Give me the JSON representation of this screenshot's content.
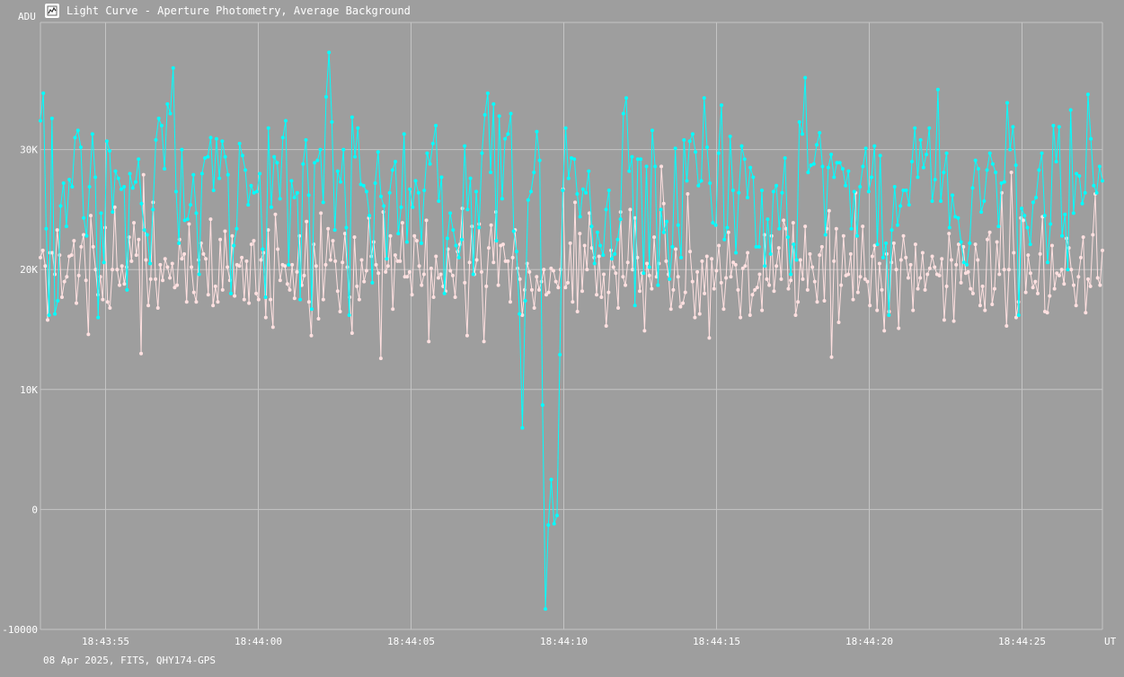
{
  "window": {
    "title": "Light Curve - Aperture Photometry, Average Background",
    "icon": "chart-app-icon"
  },
  "footer": {
    "info": "08 Apr 2025, FITS, QHY174-GPS"
  },
  "colors": {
    "background": "#9e9e9e",
    "grid": "#c4c4c4",
    "series_target": "#00ffff",
    "series_comparison": "#ffe0e0"
  },
  "chart_data": {
    "type": "line",
    "title": "",
    "ylabel": "ADU",
    "xlabel": "UT",
    "ylim": [
      -10000,
      41000
    ],
    "y_ticks": [
      -10000,
      0,
      10000,
      20000,
      30000
    ],
    "y_tick_labels": [
      "-10000",
      "0",
      "10K",
      "20K",
      "30K"
    ],
    "x_range_seconds": [
      18.43528,
      18.44875
    ],
    "x_ticks": [
      "18:43:55",
      "18:44:00",
      "18:44:05",
      "18:44:10",
      "18:44:15",
      "18:44:20",
      "18:44:25"
    ],
    "x_start": "18:43:52.9",
    "x_end": "18:44:27.6",
    "grid": true,
    "series": [
      {
        "values": [
          32400,
          34700,
          23400,
          16200,
          32600,
          16300,
          17400,
          25300,
          27200,
          23600,
          27500,
          26900,
          31000,
          31600,
          30200,
          24300,
          22800,
          26900,
          31300,
          27700,
          16000,
          24700,
          20600,
          30700,
          29900,
          24800,
          28200,
          27600,
          26700,
          26900,
          18300,
          28000,
          26800,
          27300,
          29200,
          25500,
          23300,
          22900,
          20500,
          25000,
          30800,
          32600,
          32000,
          28400,
          33800,
          33000,
          36800,
          26500,
          22200,
          30000,
          24100,
          24200,
          25400,
          27900,
          24700,
          19600,
          28000,
          29300,
          29400,
          31000,
          26600,
          30900,
          27600,
          30700,
          29400,
          27900,
          18000,
          22000,
          23400,
          30500,
          29500,
          28300,
          25400,
          27000,
          26400,
          26500,
          28000,
          21700,
          17700,
          31800,
          25200,
          29400,
          28900,
          25900,
          31000,
          32400,
          20400,
          27400,
          26000,
          26400,
          17500,
          28800,
          30800,
          26200,
          16700,
          28900,
          29100,
          30000,
          25600,
          34400,
          38100,
          32300,
          23300,
          28200,
          27300,
          30000,
          23500,
          16200,
          32700,
          29400,
          31800,
          27100,
          27000,
          26500,
          24500,
          18900,
          27200,
          29800,
          26100,
          25300,
          20900,
          26400,
          28300,
          29000,
          23000,
          25200,
          31300,
          22300,
          26700,
          25200,
          27400,
          26400,
          22200,
          26600,
          29700,
          28800,
          30500,
          32000,
          25700,
          27700,
          18000,
          22600,
          24700,
          23300,
          22000,
          21000,
          22500,
          30300,
          25000,
          27600,
          19600,
          26500,
          23500,
          29700,
          32900,
          34700,
          28100,
          33800,
          22400,
          32800,
          25900,
          30900,
          31300,
          33000,
          23200,
          21500,
          16300,
          6800,
          17400,
          25800,
          26500,
          28100,
          31500,
          29100,
          8700,
          -8300,
          -1300,
          2500,
          -1200,
          -500,
          12900,
          26600,
          31800,
          27600,
          29300,
          29200,
          26300,
          24400,
          26700,
          26400,
          28200,
          23600,
          20500,
          23100,
          22000,
          21200,
          25000,
          26600,
          20900,
          21300,
          22500,
          24200,
          33000,
          34300,
          28200,
          29400,
          17000,
          29200,
          29200,
          19700,
          28600,
          20200,
          31600,
          28600,
          18700,
          25000,
          23100,
          24000,
          19200,
          21900,
          30100,
          23700,
          21000,
          30800,
          27400,
          30700,
          31300,
          29800,
          27000,
          27400,
          34300,
          30200,
          27200,
          23900,
          23700,
          29700,
          33700,
          22500,
          23500,
          31100,
          26600,
          21400,
          26400,
          30300,
          29200,
          26000,
          28500,
          27700,
          21900,
          21900,
          26600,
          20300,
          24200,
          21300,
          26500,
          27000,
          23400,
          26400,
          29300,
          22700,
          19600,
          22100,
          20800,
          32300,
          31300,
          36000,
          28100,
          28700,
          28800,
          30400,
          31400,
          28600,
          22900,
          28500,
          29600,
          27700,
          28900,
          28900,
          28400,
          27000,
          28200,
          23400,
          26500,
          22800,
          26900,
          28600,
          30100,
          26500,
          27700,
          30300,
          22100,
          29500,
          21000,
          22200,
          16200,
          23300,
          26900,
          23700,
          25300,
          26600,
          26600,
          25400,
          29000,
          31800,
          27700,
          30800,
          28500,
          29600,
          31800,
          25700,
          27500,
          35000,
          25700,
          28100,
          29700,
          23500,
          26200,
          24400,
          24300,
          22300,
          20600,
          20400,
          22200,
          26800,
          29100,
          28400,
          24800,
          25700,
          28300,
          29700,
          28800,
          28100,
          23600,
          27200,
          27300,
          33900,
          30000,
          31900,
          28700,
          16200,
          25100,
          24500,
          23500,
          22100,
          25600,
          26000,
          28300,
          29700,
          24500,
          20600,
          23800,
          32000,
          29000,
          31900,
          22800,
          24600,
          20000,
          33300,
          24700,
          28000,
          27800,
          25500,
          26400,
          34600,
          30900,
          27000,
          26400,
          28600,
          27400
        ],
        "color": "#00ffff"
      },
      {
        "values": [
          21000,
          21600,
          20300,
          15800,
          21400,
          21400,
          19600,
          23300,
          21200,
          17700,
          19000,
          19400,
          21100,
          21200,
          22400,
          17200,
          19500,
          21900,
          22900,
          19100,
          14600,
          24500,
          21900,
          20000,
          17900,
          19400,
          17500,
          23500,
          17300,
          16800,
          20000,
          25200,
          20000,
          18700,
          20300,
          18800,
          20200,
          22700,
          20700,
          23900,
          21200,
          22500,
          13000,
          27900,
          20800,
          17000,
          19200,
          25600,
          19200,
          16800,
          20400,
          19100,
          20900,
          20200,
          19300,
          20500,
          18500,
          18700,
          22500,
          20900,
          21300,
          17300,
          23800,
          20200,
          18100,
          17300,
          20800,
          22200,
          21300,
          20900,
          17900,
          24200,
          17000,
          18600,
          17300,
          22500,
          18300,
          23200,
          20200,
          19100,
          22800,
          17800,
          20400,
          20300,
          21000,
          17500,
          20700,
          17200,
          22100,
          22400,
          18000,
          17500,
          20800,
          21400,
          16000,
          23300,
          17500,
          15200,
          24600,
          21700,
          19100,
          20400,
          20300,
          18800,
          18300,
          20400,
          17600,
          19800,
          22800,
          18700,
          19500,
          24000,
          17300,
          14500,
          22100,
          20300,
          15900,
          24700,
          17500,
          20400,
          23400,
          20800,
          22400,
          20700,
          18200,
          16500,
          20600,
          23000,
          20200,
          17700,
          14700,
          22700,
          18600,
          17500,
          20800,
          19000,
          19900,
          24300,
          21100,
          22300,
          20400,
          19700,
          12600,
          24800,
          19800,
          20300,
          22800,
          16700,
          21200,
          20700,
          20700,
          23900,
          19400,
          19400,
          19800,
          17900,
          22800,
          22400,
          20300,
          18700,
          19600,
          24100,
          14000,
          20100,
          17700,
          21100,
          19300,
          19600,
          18600,
          18200,
          21700,
          19900,
          19500,
          17700,
          21500,
          22100,
          25100,
          18900,
          14500,
          20600,
          23600,
          19600,
          20800,
          23800,
          19800,
          14000,
          18600,
          21800,
          23700,
          20600,
          24800,
          18700,
          22000,
          22100,
          20700,
          20700,
          17300,
          21000,
          23300,
          20100,
          19200,
          16200,
          18300,
          20500,
          19800,
          18300,
          16800,
          19400,
          18300,
          19000,
          20000,
          17900,
          18100,
          20100,
          19900,
          19000,
          18500,
          20000,
          26700,
          18500,
          18900,
          22200,
          17300,
          25600,
          16500,
          23000,
          18200,
          22000,
          20000,
          24700,
          21800,
          21000,
          17900,
          21100,
          17700,
          19600,
          15300,
          18100,
          21600,
          20200,
          19700,
          16800,
          24800,
          19400,
          18700,
          20600,
          25000,
          20000,
          24300,
          21000,
          18200,
          19700,
          14900,
          20500,
          19500,
          18400,
          22700,
          19400,
          20500,
          28600,
          25500,
          20700,
          19600,
          16700,
          18300,
          21700,
          19400,
          16900,
          17200,
          18100,
          26300,
          21500,
          19000,
          16000,
          19800,
          16300,
          20700,
          18000,
          21100,
          14300,
          20900,
          18400,
          19900,
          22000,
          18900,
          16700,
          19300,
          23100,
          19400,
          20600,
          20400,
          18300,
          16000,
          20100,
          20300,
          21400,
          16200,
          17900,
          18300,
          18500,
          19600,
          16600,
          22900,
          19200,
          18700,
          22800,
          18200,
          20300,
          21800,
          19200,
          24100,
          23400,
          18400,
          19100,
          23900,
          16200,
          17300,
          20800,
          19200,
          23600,
          18300,
          21300,
          20200,
          19000,
          17300,
          21200,
          21900,
          17400,
          23400,
          24900,
          12700,
          20700,
          23400,
          15600,
          18700,
          22800,
          19500,
          19600,
          21300,
          17500,
          26400,
          18100,
          19400,
          23600,
          19200,
          19000,
          17000,
          21100,
          22000,
          16600,
          20500,
          18300,
          14900,
          21300,
          16500,
          20600,
          22200,
          20000,
          15100,
          20800,
          22800,
          21000,
          19300,
          20400,
          16600,
          22100,
          18400,
          19300,
          21400,
          18300,
          19600,
          20100,
          21100,
          20200,
          19600,
          19500,
          20900,
          15800,
          18600,
          23000,
          20800,
          15700,
          20400,
          22100,
          18900,
          21900,
          19700,
          19800,
          18400,
          18000,
          22100,
          20800,
          17000,
          18600,
          16600,
          22500,
          23100,
          17100,
          18400,
          22300,
          19600,
          26400,
          20000,
          15300,
          20000,
          28100,
          21400,
          16000,
          17300,
          24300,
          24100,
          18100,
          21200,
          19700,
          18500,
          19000,
          18000,
          21300,
          24400,
          16500,
          16400,
          17800,
          22000,
          18400,
          19700,
          19500,
          20000,
          18800,
          22600,
          21800,
          20000,
          18700,
          17000,
          19400,
          21000,
          22700,
          16400,
          19200,
          18600,
          22900,
          26300,
          19300,
          18700,
          21600
        ],
        "color": "#ffe0e0"
      }
    ]
  }
}
